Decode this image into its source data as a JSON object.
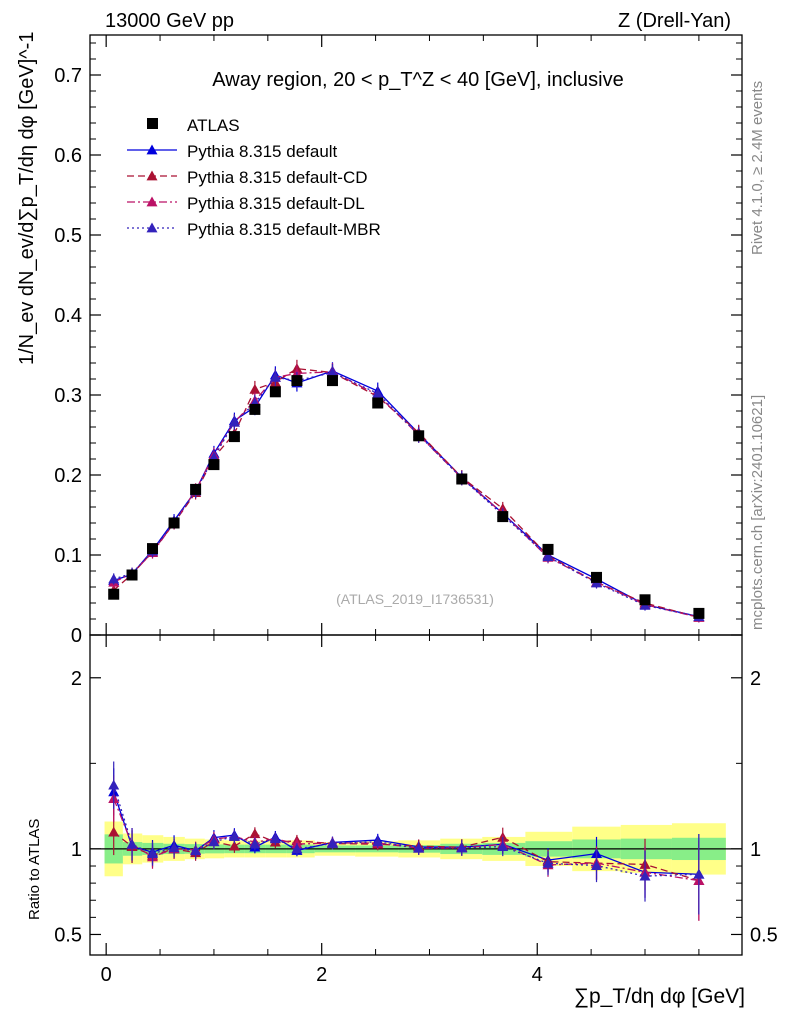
{
  "header": {
    "energy": "13000 GeV pp",
    "process": "Z (Drell-Yan)"
  },
  "side_labels": {
    "rivet": "Rivet 4.1.0, ≥ 2.4M events",
    "mcplots": "mcplots.cern.ch [arXiv:2401.10621]"
  },
  "axis_labels": {
    "y_main": "1/N_ev dN_ev/d∑p_T/dη dφ [GeV]^-1",
    "y_ratio": "Ratio to ATLAS",
    "x": "∑p_T/dη dφ [GeV]"
  },
  "chart_data": {
    "type": "line",
    "title": "Away region, 20 < p_T^Z < 40 [GeV], inclusive",
    "watermark": "(ATLAS_2019_I1736531)",
    "main_panel": {
      "ylim": [
        0,
        0.75
      ],
      "yticks": [
        0,
        0.1,
        0.2,
        0.3,
        0.4,
        0.5,
        0.6,
        0.7
      ],
      "ytick_labels": [
        "0",
        "0.1",
        "0.2",
        "0.3",
        "0.4",
        "0.5",
        "0.6",
        "0.7"
      ]
    },
    "ratio_panel": {
      "ylim": [
        0.38,
        2.25
      ],
      "yticks": [
        0.5,
        1,
        2
      ],
      "ytick_labels": [
        "0.5",
        "1",
        "2"
      ]
    },
    "xlim": [
      -0.15,
      5.9
    ],
    "xticks": [
      0,
      2,
      4
    ],
    "xtick_labels": [
      "0",
      "2",
      "4"
    ],
    "x": [
      0.07,
      0.24,
      0.43,
      0.63,
      0.83,
      1.0,
      1.19,
      1.38,
      1.57,
      1.77,
      2.1,
      2.52,
      2.9,
      3.3,
      3.68,
      4.1,
      4.55,
      5.0,
      5.5
    ],
    "data": {
      "name": "ATLAS",
      "values": [
        0.051,
        0.075,
        0.108,
        0.14,
        0.182,
        0.213,
        0.248,
        0.282,
        0.304,
        0.318,
        0.318,
        0.29,
        0.249,
        0.195,
        0.148,
        0.107,
        0.072,
        0.044,
        0.027
      ],
      "band_inner": [
        0.085,
        0.04,
        0.035,
        0.03,
        0.028,
        0.026,
        0.025,
        0.025,
        0.025,
        0.025,
        0.02,
        0.02,
        0.022,
        0.03,
        0.035,
        0.045,
        0.055,
        0.06,
        0.065
      ],
      "band_outer": [
        0.16,
        0.09,
        0.08,
        0.07,
        0.06,
        0.055,
        0.05,
        0.05,
        0.05,
        0.05,
        0.04,
        0.045,
        0.05,
        0.06,
        0.07,
        0.1,
        0.13,
        0.14,
        0.15
      ]
    },
    "series": [
      {
        "name": "Pythia 8.315 default",
        "color": "#0000dd",
        "dash": "solid",
        "values": [
          0.068,
          0.076,
          0.106,
          0.143,
          0.18,
          0.227,
          0.268,
          0.285,
          0.325,
          0.315,
          0.33,
          0.305,
          0.252,
          0.197,
          0.152,
          0.1,
          0.07,
          0.038,
          0.023
        ]
      },
      {
        "name": "Pythia 8.315 default-CD",
        "color": "#aa1133",
        "dash": "dashed",
        "values": [
          0.056,
          0.076,
          0.104,
          0.14,
          0.178,
          0.222,
          0.252,
          0.307,
          0.316,
          0.333,
          0.328,
          0.298,
          0.253,
          0.197,
          0.158,
          0.099,
          0.066,
          0.04,
          0.022
        ]
      },
      {
        "name": "Pythia 8.315 default-DL",
        "color": "#bb1166",
        "dash": "dashdot",
        "values": [
          0.066,
          0.077,
          0.103,
          0.14,
          0.181,
          0.225,
          0.266,
          0.293,
          0.322,
          0.327,
          0.329,
          0.3,
          0.25,
          0.196,
          0.152,
          0.097,
          0.066,
          0.038,
          0.022
        ]
      },
      {
        "name": "Pythia 8.315 default-MBR",
        "color": "#3322bb",
        "dash": "dotted",
        "values": [
          0.07,
          0.077,
          0.105,
          0.141,
          0.18,
          0.222,
          0.266,
          0.29,
          0.322,
          0.318,
          0.328,
          0.302,
          0.25,
          0.196,
          0.15,
          0.098,
          0.065,
          0.037,
          0.023
        ]
      }
    ]
  }
}
